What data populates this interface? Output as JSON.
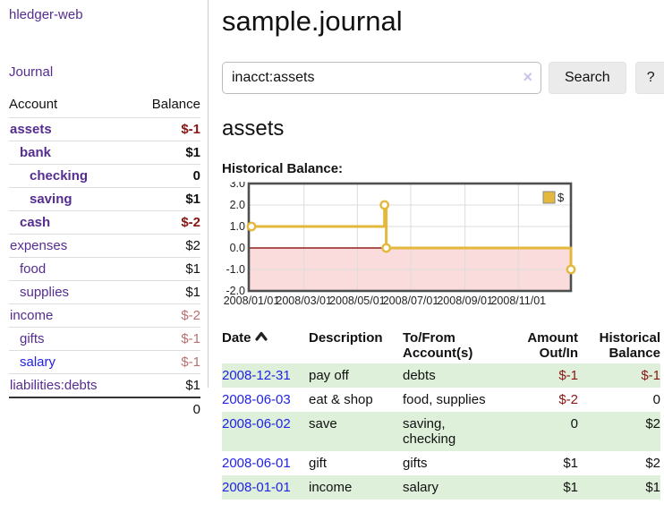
{
  "app": {
    "brand": "hledger-web",
    "nav_journal": "Journal"
  },
  "sidebar": {
    "header": {
      "account": "Account",
      "balance": "Balance"
    },
    "accounts": [
      {
        "name": "assets",
        "depth": 1,
        "bold": true,
        "blue": false,
        "balance": "$-1",
        "balance_class": "neg-strong"
      },
      {
        "name": "bank",
        "depth": 2,
        "bold": true,
        "blue": false,
        "balance": "$1",
        "balance_class": "pos"
      },
      {
        "name": "checking",
        "depth": 3,
        "bold": true,
        "blue": false,
        "balance": "0",
        "balance_class": "pos"
      },
      {
        "name": "saving",
        "depth": 3,
        "bold": true,
        "blue": false,
        "balance": "$1",
        "balance_class": "pos"
      },
      {
        "name": "cash",
        "depth": 2,
        "bold": true,
        "blue": false,
        "balance": "$-2",
        "balance_class": "neg-strong"
      },
      {
        "name": "expenses",
        "depth": 1,
        "bold": false,
        "blue": false,
        "balance": "$2",
        "balance_class": "pos"
      },
      {
        "name": "food",
        "depth": 2,
        "bold": false,
        "blue": false,
        "balance": "$1",
        "balance_class": "pos"
      },
      {
        "name": "supplies",
        "depth": 2,
        "bold": false,
        "blue": false,
        "balance": "$1",
        "balance_class": "pos"
      },
      {
        "name": "income",
        "depth": 1,
        "bold": false,
        "blue": false,
        "balance": "$-2",
        "balance_class": "neg-soft"
      },
      {
        "name": "gifts",
        "depth": 2,
        "bold": false,
        "blue": false,
        "balance": "$-1",
        "balance_class": "neg-soft"
      },
      {
        "name": "salary",
        "depth": 2,
        "bold": false,
        "blue": true,
        "balance": "$-1",
        "balance_class": "neg-soft"
      },
      {
        "name": "liabilities:debts",
        "depth": 1,
        "bold": false,
        "blue": false,
        "balance": "$1",
        "balance_class": "pos"
      }
    ],
    "total": "0"
  },
  "main": {
    "title": "sample.journal",
    "search": {
      "value": "inacct:assets",
      "clear_icon": "×",
      "button_label": "Search",
      "help_label": "?"
    },
    "account_heading": "assets",
    "chart_label": "Historical Balance:"
  },
  "chart_data": {
    "type": "line",
    "step": true,
    "title": "Historical Balance:",
    "legend": "$",
    "legend_position": "top-right",
    "grid": true,
    "x_start": "2008-01-01",
    "x_end": "2008-12-31",
    "xticks": [
      "2008/01/01",
      "2008/03/01",
      "2008/05/01",
      "2008/07/01",
      "2008/09/01",
      "2008/11/01"
    ],
    "yticks": [
      "3.0",
      "2.0",
      "1.0",
      "0.0",
      "-1.0",
      "-2.0"
    ],
    "ylim": [
      -2,
      3
    ],
    "series": [
      {
        "name": "$",
        "points": [
          [
            "2008-01-01",
            1
          ],
          [
            "2008-06-01",
            2
          ],
          [
            "2008-06-03",
            0
          ],
          [
            "2008-12-31",
            -1
          ]
        ]
      }
    ]
  },
  "register": {
    "columns": [
      {
        "label": "Date",
        "align": "left",
        "sorted": true
      },
      {
        "label": "Description",
        "align": "left"
      },
      {
        "label": "To/From\nAccount(s)",
        "align": "left"
      },
      {
        "label": "Amount\nOut/In",
        "align": "right"
      },
      {
        "label": "Historical\nBalance",
        "align": "right"
      }
    ],
    "rows": [
      {
        "date": "2008-12-31",
        "description": "pay off",
        "accounts": "debts",
        "amount": "$-1",
        "amount_neg": true,
        "balance": "$-1",
        "balance_neg": true
      },
      {
        "date": "2008-06-03",
        "description": "eat & shop",
        "accounts": "food, supplies",
        "amount": "$-2",
        "amount_neg": true,
        "balance": "0",
        "balance_neg": false
      },
      {
        "date": "2008-06-02",
        "description": "save",
        "accounts": "saving,\nchecking",
        "amount": "0",
        "amount_neg": false,
        "balance": "$2",
        "balance_neg": false
      },
      {
        "date": "2008-06-01",
        "description": "gift",
        "accounts": "gifts",
        "amount": "$1",
        "amount_neg": false,
        "balance": "$2",
        "balance_neg": false
      },
      {
        "date": "2008-01-01",
        "description": "income",
        "accounts": "salary",
        "amount": "$1",
        "amount_neg": false,
        "balance": "$1",
        "balance_neg": false
      }
    ]
  },
  "colors": {
    "link_purple": "#552d90",
    "link_blue": "#2222e6",
    "negative_strong": "#8a1515",
    "negative_soft": "#b97070",
    "row_stripe_green": "#def0da",
    "series_gold": "#e3b83c",
    "negative_region_pink": "#fbdcdc",
    "zero_line_red": "#921f1f",
    "grid_gray": "#dcdcdc",
    "chart_border": "#4f4f4f"
  }
}
